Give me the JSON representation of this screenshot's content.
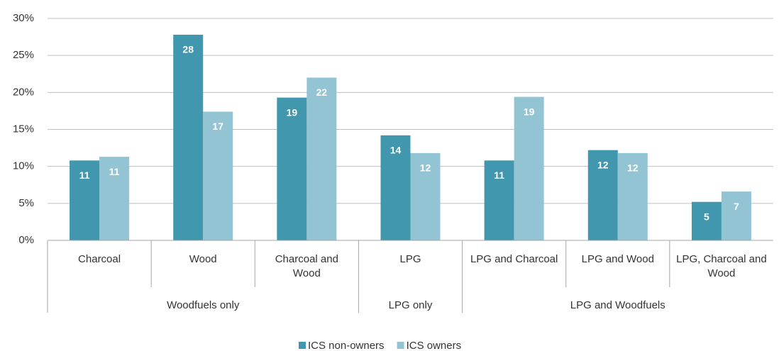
{
  "chart_data": {
    "type": "bar",
    "categories": [
      "Charcoal",
      "Wood",
      "Charcoal and Wood",
      "LPG",
      "LPG and Charcoal",
      "LPG and Wood",
      "LPG, Charcoal and Wood"
    ],
    "category_groups": [
      "Woodfuels only",
      "Woodfuels only",
      "Woodfuels only",
      "LPG only",
      "LPG and Woodfuels",
      "LPG and Woodfuels",
      "LPG and Woodfuels"
    ],
    "series": [
      {
        "name": "ICS non-owners",
        "color": "#4197ad",
        "values": [
          10.8,
          27.8,
          19.3,
          14.2,
          10.8,
          12.2,
          5.2
        ],
        "value_labels": [
          "11",
          "28",
          "19",
          "14",
          "11",
          "12",
          "5"
        ]
      },
      {
        "name": "ICS owners",
        "color": "#93c4d4",
        "values": [
          11.3,
          17.4,
          22.0,
          11.8,
          19.4,
          11.8,
          6.6
        ],
        "value_labels": [
          "11",
          "17",
          "22",
          "12",
          "19",
          "12",
          "7"
        ]
      }
    ],
    "ylim": [
      0,
      30
    ],
    "yticks": [
      {
        "value": 0,
        "label": "0%"
      },
      {
        "value": 5,
        "label": "5%"
      },
      {
        "value": 10,
        "label": "10%"
      },
      {
        "value": 15,
        "label": "15%"
      },
      {
        "value": 20,
        "label": "20%"
      },
      {
        "value": 25,
        "label": "25%"
      },
      {
        "value": 30,
        "label": "30%"
      }
    ],
    "grid": true,
    "legend": "bottom"
  }
}
